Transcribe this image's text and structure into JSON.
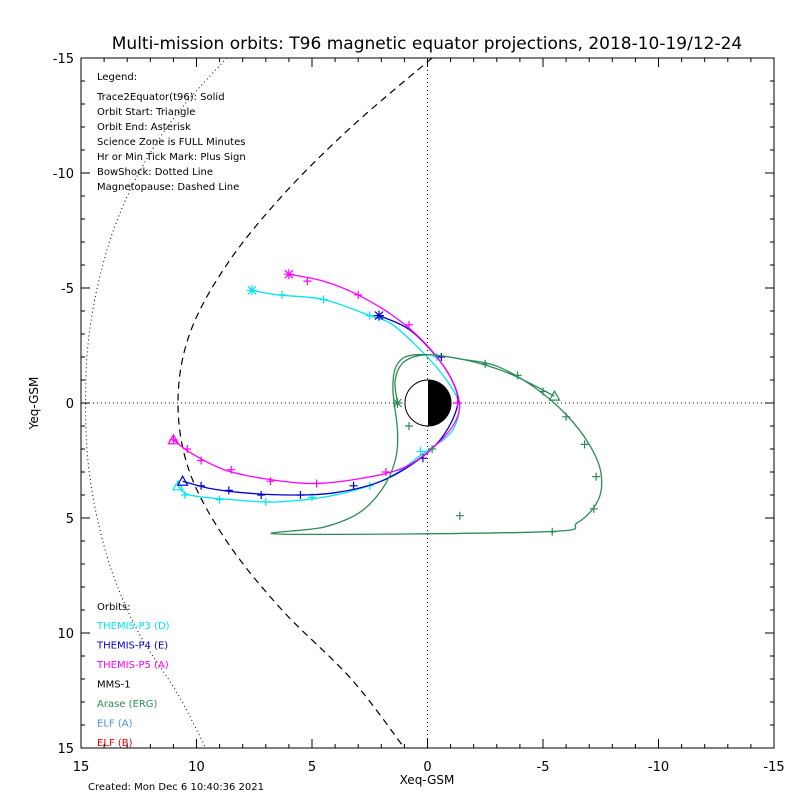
{
  "chart_data": {
    "type": "line",
    "title": "Multi-mission orbits: T96 magnetic equator projections, 2018-10-19/12-24",
    "xlabel": "Xeq-GSM",
    "ylabel": "Yeq-GSM",
    "xlim": [
      15,
      -15
    ],
    "ylim": [
      -15,
      15
    ],
    "x_ticks": [
      "15",
      "10",
      "5",
      "0",
      "-5",
      "-10",
      "-15"
    ],
    "y_ticks": [
      "-15",
      "-10",
      "-5",
      "0",
      "5",
      "10",
      "15"
    ],
    "grid": false,
    "legend_title": "Legend:",
    "legend_lines": [
      "Trace2Equator(t96): Solid",
      "Orbit Start: Triangle",
      "Orbit End: Asterisk",
      "Science Zone is FULL Minutes",
      "Hr or Min Tick Mark: Plus Sign",
      "BowShock: Dotted Line",
      "Magnetopause: Dashed Line"
    ],
    "orbits_title": "Orbits:",
    "created_text": "Created: Mon Dec  6 10:40:36 2021",
    "boundaries": {
      "bowshock": {
        "style": "dotted",
        "points": [
          [
            8.7,
            -15
          ],
          [
            10.9,
            -12.5
          ],
          [
            12.5,
            -10
          ],
          [
            13.6,
            -7.5
          ],
          [
            14.3,
            -5
          ],
          [
            14.7,
            -2.5
          ],
          [
            14.8,
            0
          ],
          [
            14.7,
            2.5
          ],
          [
            14.3,
            5
          ],
          [
            13.6,
            7.5
          ],
          [
            12.5,
            10
          ],
          [
            10.9,
            12.5
          ],
          [
            10.1,
            14
          ],
          [
            9.6,
            15
          ]
        ]
      },
      "magnetopause": {
        "style": "dashed",
        "points": [
          [
            -0.2,
            -15
          ],
          [
            3.3,
            -12
          ],
          [
            6.3,
            -9
          ],
          [
            8.7,
            -6
          ],
          [
            10.3,
            -3
          ],
          [
            10.8,
            0
          ],
          [
            10.3,
            3
          ],
          [
            8.7,
            6
          ],
          [
            6.3,
            9
          ],
          [
            3.3,
            12
          ],
          [
            1.0,
            15
          ]
        ]
      }
    },
    "series": [
      {
        "name": "THEMIS-P3 (D)",
        "color": "#00e5ee",
        "points": [
          [
            7.6,
            -4.9
          ],
          [
            6.5,
            -4.7
          ],
          [
            4.5,
            -4.5
          ],
          [
            2.5,
            -3.8
          ],
          [
            1.5,
            -3.4
          ],
          [
            0.3,
            -2.3
          ],
          [
            -0.6,
            -1.3
          ],
          [
            -1.2,
            -0.4
          ],
          [
            -1.4,
            0.2
          ],
          [
            -1.0,
            1.3
          ],
          [
            0.2,
            2.2
          ],
          [
            1.8,
            3.3
          ],
          [
            4.0,
            4.0
          ],
          [
            6.5,
            4.3
          ],
          [
            8.5,
            4.2
          ],
          [
            10.3,
            4.0
          ],
          [
            10.8,
            3.6
          ]
        ],
        "ticks": [
          [
            6.3,
            -4.7
          ],
          [
            4.5,
            -4.5
          ],
          [
            2.5,
            -3.8
          ],
          [
            -0.4,
            -2.0
          ],
          [
            0.3,
            2.1
          ],
          [
            2.5,
            3.6
          ],
          [
            5.0,
            4.1
          ],
          [
            7.0,
            4.3
          ],
          [
            9.0,
            4.2
          ],
          [
            10.5,
            4.0
          ]
        ],
        "start": [
          10.8,
          3.6
        ],
        "end": [
          7.6,
          -4.9
        ]
      },
      {
        "name": "THEMIS-P4 (E)",
        "color": "#0000cc",
        "points": [
          [
            2.1,
            -3.8
          ],
          [
            0.8,
            -3.2
          ],
          [
            -0.4,
            -2.0
          ],
          [
            -1.1,
            -0.9
          ],
          [
            -1.3,
            0.1
          ],
          [
            -0.7,
            1.4
          ],
          [
            0.3,
            2.4
          ],
          [
            2.0,
            3.4
          ],
          [
            4.0,
            3.9
          ],
          [
            6.0,
            4.0
          ],
          [
            8.0,
            3.9
          ],
          [
            9.5,
            3.7
          ],
          [
            10.6,
            3.4
          ]
        ],
        "ticks": [
          [
            -0.6,
            -2.0
          ],
          [
            0.2,
            2.4
          ],
          [
            3.2,
            3.6
          ],
          [
            5.5,
            4.0
          ],
          [
            7.2,
            4.0
          ],
          [
            8.6,
            3.8
          ],
          [
            9.8,
            3.6
          ]
        ],
        "start": [
          10.6,
          3.4
        ],
        "end": [
          2.1,
          -3.8
        ]
      },
      {
        "name": "THEMIS-P5 (A)",
        "color": "#ff00ff",
        "points": [
          [
            6.0,
            -5.6
          ],
          [
            4.5,
            -5.3
          ],
          [
            3.0,
            -4.7
          ],
          [
            1.5,
            -3.8
          ],
          [
            0.3,
            -2.8
          ],
          [
            -0.7,
            -1.6
          ],
          [
            -1.3,
            -0.4
          ],
          [
            -1.3,
            0.6
          ],
          [
            -0.5,
            1.7
          ],
          [
            1.0,
            2.8
          ],
          [
            3.0,
            3.3
          ],
          [
            5.0,
            3.5
          ],
          [
            7.0,
            3.3
          ],
          [
            8.8,
            2.9
          ],
          [
            10.2,
            2.2
          ],
          [
            11.0,
            1.6
          ]
        ],
        "ticks": [
          [
            5.2,
            -5.3
          ],
          [
            3.0,
            -4.7
          ],
          [
            0.8,
            -3.4
          ],
          [
            -1.3,
            0.0
          ],
          [
            1.8,
            3.0
          ],
          [
            4.8,
            3.5
          ],
          [
            6.8,
            3.4
          ],
          [
            8.5,
            2.9
          ],
          [
            9.8,
            2.5
          ],
          [
            10.4,
            2.0
          ],
          [
            11.0,
            1.6
          ]
        ],
        "start": [
          11.0,
          1.6
        ],
        "end": [
          6.0,
          -5.6
        ]
      },
      {
        "name": "MMS-1",
        "color": "#000000",
        "points": [],
        "ticks": []
      },
      {
        "name": "Arase (ERG)",
        "color": "#2e8b57",
        "points": [
          [
            -5.5,
            -0.3
          ],
          [
            -3.5,
            -1.3
          ],
          [
            -1.5,
            -1.9
          ],
          [
            0.5,
            -2.1
          ],
          [
            1.3,
            -1.7
          ],
          [
            1.5,
            -0.6
          ],
          [
            1.3,
            1.2
          ],
          [
            1.4,
            2.5
          ],
          [
            2.0,
            3.8
          ],
          [
            3.0,
            4.8
          ],
          [
            4.5,
            5.4
          ],
          [
            6.3,
            5.7
          ],
          [
            -5.0,
            5.6
          ],
          [
            -6.5,
            5.2
          ],
          [
            -7.4,
            4.2
          ],
          [
            -7.5,
            3.0
          ],
          [
            -7.0,
            1.8
          ],
          [
            -6.0,
            0.5
          ],
          [
            -4.6,
            -0.7
          ],
          [
            -3.0,
            -1.6
          ],
          [
            -1.5,
            -1.9
          ],
          [
            0.0,
            -2.1
          ],
          [
            1.0,
            -1.8
          ],
          [
            1.4,
            -1.0
          ],
          [
            1.3,
            0.0
          ]
        ],
        "ticks": [
          [
            -2.5,
            -1.7
          ],
          [
            -3.9,
            -1.2
          ],
          [
            -5.0,
            -0.5
          ],
          [
            -6.0,
            0.6
          ],
          [
            -6.8,
            1.8
          ],
          [
            -7.3,
            3.2
          ],
          [
            -7.2,
            4.6
          ],
          [
            -5.4,
            5.6
          ],
          [
            -1.4,
            4.9
          ],
          [
            0.8,
            1.0
          ],
          [
            -0.2,
            2.0
          ]
        ],
        "start": [
          -5.5,
          -0.3
        ],
        "end": [
          1.3,
          0.0
        ]
      },
      {
        "name": "ELF (A)",
        "color": "#4a90e2",
        "points": [],
        "ticks": []
      },
      {
        "name": "ELF (B)",
        "color": "#e00000",
        "points": [],
        "ticks": []
      }
    ]
  }
}
